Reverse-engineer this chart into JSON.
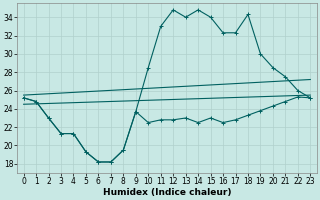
{
  "xlabel": "Humidex (Indice chaleur)",
  "background_color": "#c8e8e4",
  "grid_color": "#b0d0cc",
  "line_color": "#006060",
  "xlim": [
    -0.5,
    23.5
  ],
  "ylim": [
    17.0,
    35.5
  ],
  "yticks": [
    18,
    20,
    22,
    24,
    26,
    28,
    30,
    32,
    34
  ],
  "xticks": [
    0,
    1,
    2,
    3,
    4,
    5,
    6,
    7,
    8,
    9,
    10,
    11,
    12,
    13,
    14,
    15,
    16,
    17,
    18,
    19,
    20,
    21,
    22,
    23
  ],
  "upper_curve_x": [
    0,
    1,
    2,
    3,
    4,
    5,
    6,
    7,
    8,
    9,
    10,
    11,
    12,
    13,
    14,
    15,
    16,
    17,
    18,
    19,
    20,
    21,
    22,
    23
  ],
  "upper_curve_y": [
    25.2,
    24.8,
    23.0,
    21.3,
    21.3,
    19.3,
    18.2,
    18.2,
    19.5,
    23.7,
    28.5,
    33.0,
    34.8,
    34.0,
    34.8,
    34.0,
    32.3,
    32.3,
    34.3,
    30.0,
    28.5,
    27.5,
    26.0,
    25.2
  ],
  "lower_curve_x": [
    0,
    1,
    2,
    3,
    4,
    5,
    6,
    7,
    8,
    9,
    10,
    11,
    12,
    13,
    14,
    15,
    16,
    17,
    18,
    19,
    20,
    21,
    22,
    23
  ],
  "lower_curve_y": [
    25.2,
    24.8,
    23.0,
    21.3,
    21.3,
    19.3,
    18.2,
    18.2,
    19.5,
    23.7,
    22.5,
    22.8,
    22.8,
    23.0,
    22.5,
    23.0,
    22.5,
    22.8,
    23.3,
    23.8,
    24.3,
    24.8,
    25.3,
    25.2
  ],
  "straight_line1_x": [
    0,
    23
  ],
  "straight_line1_y": [
    25.5,
    27.2
  ],
  "straight_line2_x": [
    0,
    23
  ],
  "straight_line2_y": [
    24.5,
    25.5
  ]
}
